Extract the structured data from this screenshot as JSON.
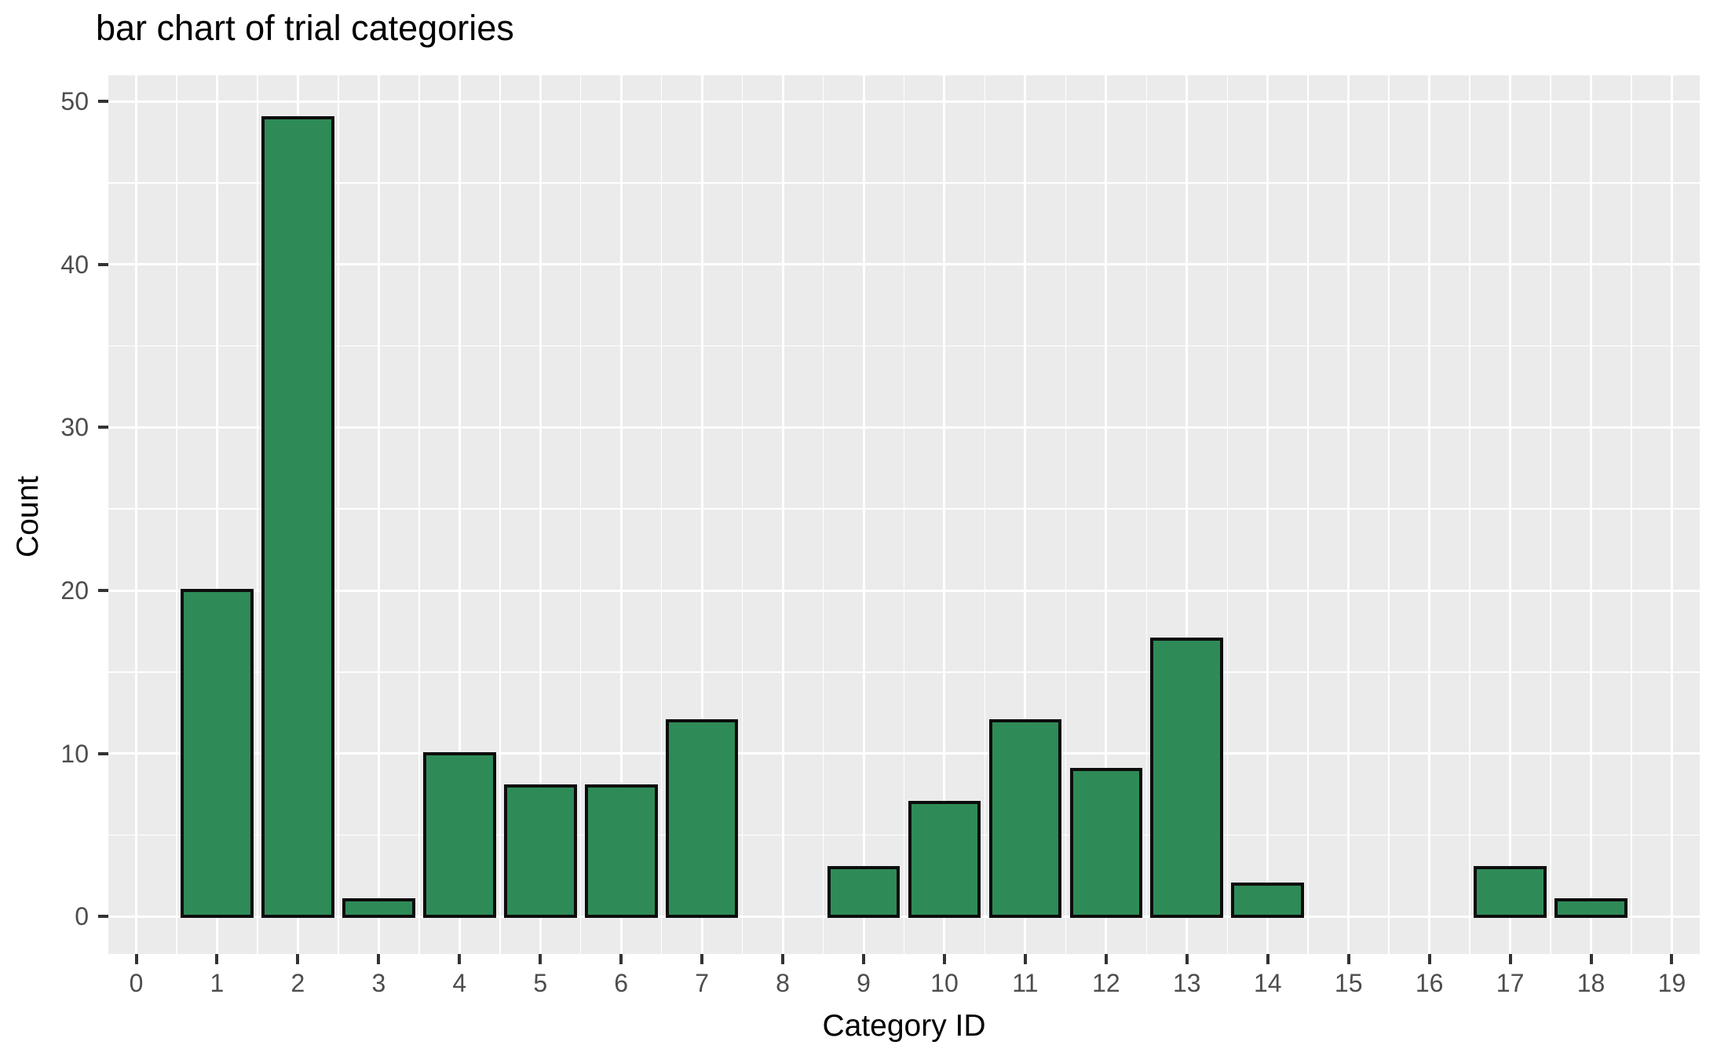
{
  "title": "bar chart of trial categories",
  "chart_data": {
    "type": "bar",
    "title": "bar chart of trial categories",
    "xlabel": "Category ID",
    "ylabel": "Count",
    "x": [
      1,
      2,
      3,
      4,
      5,
      6,
      7,
      9,
      10,
      11,
      12,
      13,
      14,
      17,
      18
    ],
    "values": [
      20,
      49,
      1,
      10,
      8,
      8,
      12,
      3,
      7,
      12,
      9,
      17,
      2,
      3,
      1
    ],
    "x_ticks": [
      0,
      1,
      2,
      3,
      4,
      5,
      6,
      7,
      8,
      9,
      10,
      11,
      12,
      13,
      14,
      15,
      16,
      17,
      18,
      19
    ],
    "y_ticks": [
      0,
      10,
      20,
      30,
      40,
      50
    ],
    "xlim": [
      0,
      19
    ],
    "ylim": [
      0,
      50
    ],
    "bar_width": 0.9,
    "grid": "on",
    "legend": "none",
    "colors": {
      "bar_fill": "#2E8B57",
      "bar_stroke": "#0D0D0D",
      "panel_background": "#EBEBEB",
      "gridline": "#FFFFFF",
      "tick_label": "#4D4D4D",
      "tick_mark": "#333333",
      "text": "#000000"
    }
  }
}
